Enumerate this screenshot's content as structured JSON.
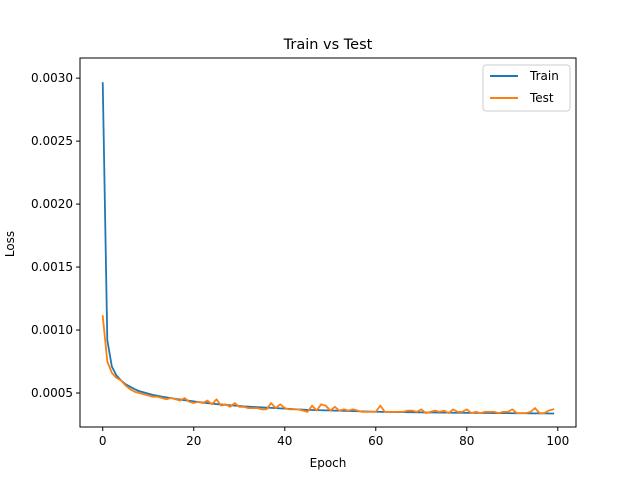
{
  "chart_data": {
    "type": "line",
    "title": "Train vs Test",
    "xlabel": "Epoch",
    "ylabel": "Loss",
    "xlim": [
      -5,
      104
    ],
    "ylim": [
      0.00023,
      0.00316
    ],
    "xticks": [
      0,
      20,
      40,
      60,
      80,
      100
    ],
    "xtick_labels": [
      "0",
      "20",
      "40",
      "60",
      "80",
      "100"
    ],
    "yticks": [
      0.0005,
      0.001,
      0.0015,
      0.002,
      0.0025,
      0.003
    ],
    "ytick_labels": [
      "0.0005",
      "0.0010",
      "0.0015",
      "0.0020",
      "0.0025",
      "0.0030"
    ],
    "grid": false,
    "legend_position": "top-right",
    "x": [
      0,
      1,
      2,
      3,
      4,
      5,
      6,
      7,
      8,
      9,
      10,
      11,
      12,
      13,
      14,
      15,
      16,
      17,
      18,
      19,
      20,
      21,
      22,
      23,
      24,
      25,
      26,
      27,
      28,
      29,
      30,
      31,
      32,
      33,
      34,
      35,
      36,
      37,
      38,
      39,
      40,
      41,
      42,
      43,
      44,
      45,
      46,
      47,
      48,
      49,
      50,
      51,
      52,
      53,
      54,
      55,
      56,
      57,
      58,
      59,
      60,
      61,
      62,
      63,
      64,
      65,
      66,
      67,
      68,
      69,
      70,
      71,
      72,
      73,
      74,
      75,
      76,
      77,
      78,
      79,
      80,
      81,
      82,
      83,
      84,
      85,
      86,
      87,
      88,
      89,
      90,
      91,
      92,
      93,
      94,
      95,
      96,
      97,
      98,
      99
    ],
    "series": [
      {
        "name": "Train",
        "color": "#1f77b4",
        "values": [
          0.00296,
          0.00092,
          0.00071,
          0.00064,
          0.0006,
          0.00057,
          0.00055,
          0.00053,
          0.000515,
          0.000505,
          0.000495,
          0.000485,
          0.000478,
          0.000471,
          0.000465,
          0.000459,
          0.000453,
          0.000448,
          0.000443,
          0.000438,
          0.000433,
          0.000428,
          0.000424,
          0.00042,
          0.000416,
          0.000412,
          0.000409,
          0.000406,
          0.000403,
          0.0004,
          0.000397,
          0.000394,
          0.000392,
          0.00039,
          0.000388,
          0.000386,
          0.000384,
          0.000382,
          0.00038,
          0.000378,
          0.000376,
          0.000374,
          0.000372,
          0.00037,
          0.000368,
          0.000366,
          0.000365,
          0.000364,
          0.000363,
          0.000362,
          0.000361,
          0.00036,
          0.000359,
          0.000358,
          0.000357,
          0.000356,
          0.000355,
          0.000354,
          0.000353,
          0.000352,
          0.000351,
          0.00035,
          0.00035,
          0.000349,
          0.000349,
          0.000348,
          0.000348,
          0.000347,
          0.000347,
          0.000346,
          0.000346,
          0.000345,
          0.000345,
          0.000345,
          0.000344,
          0.000344,
          0.000344,
          0.000343,
          0.000343,
          0.000343,
          0.000342,
          0.000342,
          0.000342,
          0.000341,
          0.000341,
          0.000341,
          0.00034,
          0.00034,
          0.00034,
          0.00034,
          0.000339,
          0.000339,
          0.000339,
          0.000339,
          0.000338,
          0.000338,
          0.000338,
          0.000338,
          0.000337,
          0.000337
        ]
      },
      {
        "name": "Test",
        "color": "#ff7f0e",
        "values": [
          0.00111,
          0.00075,
          0.00066,
          0.00062,
          0.0006,
          0.00056,
          0.00053,
          0.00051,
          0.0005,
          0.00049,
          0.00048,
          0.00047,
          0.00047,
          0.00046,
          0.00045,
          0.00046,
          0.00045,
          0.00044,
          0.00046,
          0.00043,
          0.00042,
          0.00043,
          0.00042,
          0.00044,
          0.00041,
          0.00045,
          0.0004,
          0.00041,
          0.00039,
          0.00042,
          0.00039,
          0.00039,
          0.00038,
          0.00038,
          0.00038,
          0.00037,
          0.00037,
          0.00042,
          0.00038,
          0.00041,
          0.00038,
          0.00037,
          0.00037,
          0.00037,
          0.00036,
          0.00035,
          0.0004,
          0.00036,
          0.00041,
          0.0004,
          0.00036,
          0.00039,
          0.00036,
          0.00037,
          0.00036,
          0.00037,
          0.00036,
          0.00035,
          0.00035,
          0.00035,
          0.00035,
          0.0004,
          0.00035,
          0.00035,
          0.00035,
          0.00035,
          0.00035,
          0.00036,
          0.00036,
          0.00035,
          0.00037,
          0.00034,
          0.00035,
          0.00036,
          0.00035,
          0.00036,
          0.00034,
          0.00037,
          0.00035,
          0.00035,
          0.00037,
          0.00034,
          0.00035,
          0.00034,
          0.00035,
          0.00035,
          0.00035,
          0.00034,
          0.00035,
          0.00035,
          0.00037,
          0.00034,
          0.00034,
          0.00034,
          0.00035,
          0.00038,
          0.00034,
          0.00034,
          0.00036,
          0.00037
        ]
      }
    ]
  }
}
